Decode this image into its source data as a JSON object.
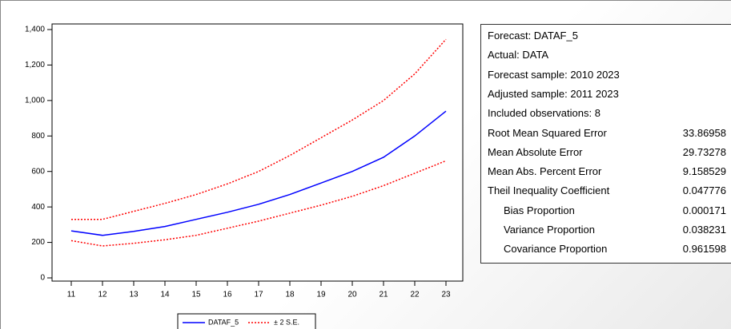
{
  "chart_data": {
    "type": "line",
    "categories": [
      "11",
      "12",
      "13",
      "14",
      "15",
      "16",
      "17",
      "18",
      "19",
      "20",
      "21",
      "22",
      "23"
    ],
    "series": [
      {
        "name": "DATAF_5",
        "color": "#0000ff",
        "style": "solid",
        "values": [
          265,
          240,
          262,
          290,
          330,
          370,
          415,
          470,
          535,
          600,
          680,
          800,
          940
        ]
      },
      {
        "name": "± 2 S.E.",
        "color": "#ff0000",
        "style": "dotted",
        "upper": [
          330,
          330,
          375,
          420,
          470,
          530,
          600,
          690,
          790,
          890,
          1000,
          1150,
          1345
        ],
        "lower": [
          210,
          180,
          195,
          215,
          240,
          280,
          320,
          365,
          410,
          460,
          520,
          590,
          660
        ]
      }
    ],
    "ylim": [
      0,
      1400
    ],
    "yticks": [
      0,
      200,
      400,
      600,
      800,
      {
        "value": 1000,
        "label": "1,000"
      },
      {
        "value": 1200,
        "label": "1,200"
      },
      {
        "value": 1400,
        "label": "1,400"
      }
    ]
  },
  "stats": {
    "header": [
      "Forecast: DATAF_5",
      "Actual: DATA",
      "Forecast sample: 2010 2023",
      "Adjusted sample: 2011 2023",
      "Included observations: 8"
    ],
    "rows": [
      {
        "label": "Root Mean Squared Error",
        "value": 33.86958
      },
      {
        "label": "Mean Absolute Error",
        "value": 29.73278
      },
      {
        "label": "Mean Abs. Percent Error",
        "value": 9.158529
      },
      {
        "label": "Theil Inequality Coefficient",
        "value": 0.047776
      },
      {
        "label": "Bias Proportion",
        "value": 0.000171
      },
      {
        "label": "Variance Proportion",
        "value": 0.038231
      },
      {
        "label": "Covariance Proportion",
        "value": 0.961598
      }
    ]
  }
}
